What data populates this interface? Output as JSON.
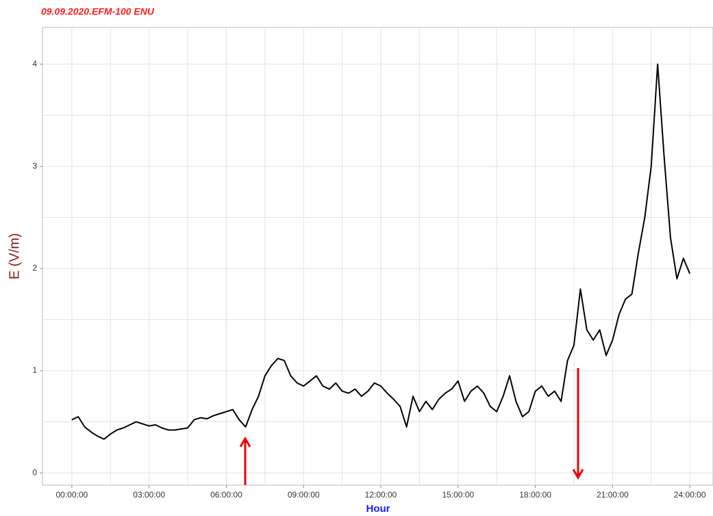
{
  "chart_data": {
    "type": "line",
    "title": "09.09.2020.EFM-100 ENU",
    "x_label": "Hour",
    "y_label": "E (V/m)",
    "x": [
      0,
      0.25,
      0.5,
      0.75,
      1,
      1.25,
      1.5,
      1.75,
      2,
      2.25,
      2.5,
      2.75,
      3,
      3.25,
      3.5,
      3.75,
      4,
      4.25,
      4.5,
      4.75,
      5,
      5.25,
      5.5,
      5.75,
      6,
      6.25,
      6.5,
      6.75,
      7,
      7.25,
      7.5,
      7.75,
      8,
      8.25,
      8.5,
      8.75,
      9,
      9.25,
      9.5,
      9.75,
      10,
      10.25,
      10.5,
      10.75,
      11,
      11.25,
      11.5,
      11.75,
      12,
      12.25,
      12.5,
      12.75,
      13,
      13.25,
      13.5,
      13.75,
      14,
      14.25,
      14.5,
      14.75,
      15,
      15.25,
      15.5,
      15.75,
      16,
      16.25,
      16.5,
      16.75,
      17,
      17.25,
      17.5,
      17.75,
      18,
      18.25,
      18.5,
      18.75,
      19,
      19.25,
      19.5,
      19.75,
      20,
      20.25,
      20.5,
      20.75,
      21,
      21.25,
      21.5,
      21.75,
      22,
      22.25,
      22.5,
      22.75,
      23,
      23.25,
      23.5,
      23.75,
      24
    ],
    "series": [
      {
        "name": "E",
        "color": "#000000",
        "values": [
          0.52,
          0.55,
          0.45,
          0.4,
          0.36,
          0.33,
          0.38,
          0.42,
          0.44,
          0.47,
          0.5,
          0.48,
          0.46,
          0.47,
          0.44,
          0.42,
          0.42,
          0.43,
          0.44,
          0.52,
          0.54,
          0.53,
          0.56,
          0.58,
          0.6,
          0.62,
          0.52,
          0.45,
          0.62,
          0.75,
          0.95,
          1.05,
          1.12,
          1.1,
          0.95,
          0.88,
          0.85,
          0.9,
          0.95,
          0.85,
          0.82,
          0.88,
          0.8,
          0.78,
          0.82,
          0.75,
          0.8,
          0.88,
          0.85,
          0.78,
          0.72,
          0.65,
          0.45,
          0.75,
          0.6,
          0.7,
          0.62,
          0.72,
          0.78,
          0.82,
          0.9,
          0.7,
          0.8,
          0.85,
          0.78,
          0.65,
          0.6,
          0.75,
          0.95,
          0.7,
          0.55,
          0.6,
          0.8,
          0.85,
          0.75,
          0.8,
          0.7,
          1.1,
          1.25,
          1.8,
          1.4,
          1.3,
          1.4,
          1.15,
          1.3,
          1.55,
          1.7,
          1.75,
          2.15,
          2.5,
          3.0,
          4.0,
          3.1,
          2.3,
          1.9,
          2.1,
          1.95
        ]
      }
    ],
    "xlim": [
      -1.14,
      24.9
    ],
    "xticks": [
      {
        "value": 0,
        "label": "00:00:00"
      },
      {
        "value": 3,
        "label": "03:00:00"
      },
      {
        "value": 6,
        "label": "06:00:00"
      },
      {
        "value": 9,
        "label": "09:00:00"
      },
      {
        "value": 12,
        "label": "12:00:00"
      },
      {
        "value": 15,
        "label": "15:00:00"
      },
      {
        "value": 18,
        "label": "18:00:00"
      },
      {
        "value": 21,
        "label": "21:00:00"
      },
      {
        "value": 24,
        "label": "24:00:00"
      }
    ],
    "ylim": [
      -0.12,
      4.36
    ],
    "yticks": [
      0,
      1,
      2,
      3,
      4
    ],
    "grid": true
  }
}
